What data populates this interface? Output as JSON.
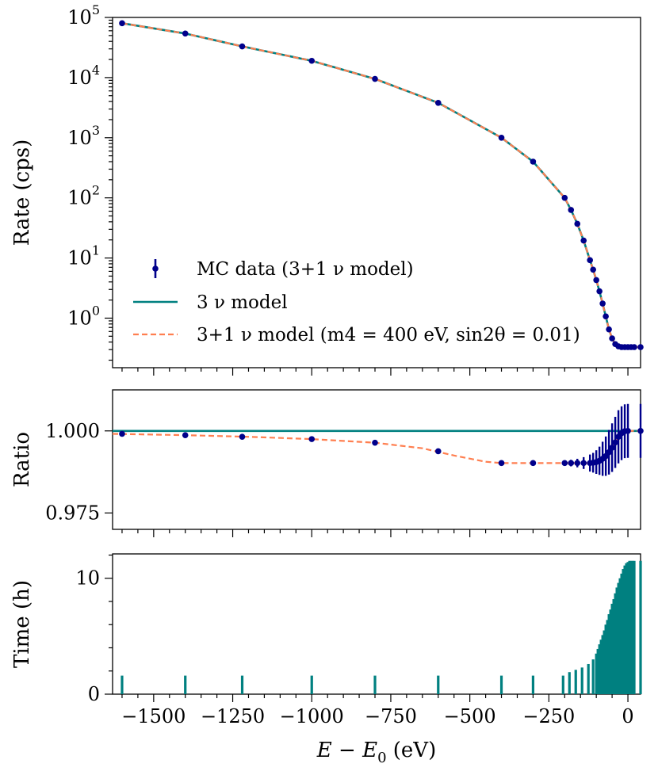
{
  "colors": {
    "data": "#00008b",
    "model3": "#008080",
    "model31": "#ff7f50",
    "bars": "#008080"
  },
  "chart_data": [
    {
      "type": "scatter",
      "panel": "rate",
      "ylabel": "Rate (cps)",
      "yscale": "log",
      "xlim": [
        -1630,
        40
      ],
      "ylim": [
        0.15,
        100000
      ],
      "ytick_exponents": [
        0,
        1,
        2,
        3,
        4,
        5
      ],
      "ytick_labels": [
        "10",
        "10",
        "10",
        "10",
        "10",
        "10"
      ],
      "legend_position": "lower-left",
      "series": [
        {
          "name": "MC data (3+1 ν model)",
          "style": "points-with-errorbars",
          "x": [
            -1600,
            -1400,
            -1220,
            -1000,
            -800,
            -600,
            -400,
            -300,
            -200,
            -180,
            -160,
            -140,
            -120,
            -110,
            -100,
            -90,
            -80,
            -70,
            -60,
            -50,
            -40,
            -30,
            -20,
            -10,
            0,
            10,
            20,
            40
          ],
          "y": [
            80000,
            54000,
            33000,
            19000,
            9500,
            3800,
            1000,
            400,
            100,
            63,
            37,
            19.5,
            9.2,
            6.4,
            4.3,
            2.8,
            1.75,
            1.07,
            0.65,
            0.46,
            0.37,
            0.34,
            0.33,
            0.33,
            0.33,
            0.33,
            0.33,
            0.33
          ]
        },
        {
          "name": "3 ν model",
          "style": "solid-line"
        },
        {
          "name": "3+1 ν model (m4 = 400 eV, sin2θ = 0.01)",
          "style": "dashed-line"
        }
      ]
    },
    {
      "type": "line",
      "panel": "ratio",
      "ylabel": "Ratio",
      "xlim": [
        -1630,
        40
      ],
      "ylim": [
        0.97,
        1.0125
      ],
      "yticks": [
        0.975,
        1.0
      ],
      "ytick_labels": [
        "0.975",
        "1.000"
      ],
      "model3_value": 1.0,
      "model31": {
        "x": [
          -1630,
          -1400,
          -1200,
          -1000,
          -800,
          -650,
          -550,
          -450,
          -400,
          -350,
          -300,
          -250,
          -130,
          -100,
          -80,
          -60,
          -40,
          -20,
          0,
          40
        ],
        "y": [
          0.9991,
          0.9987,
          0.9982,
          0.9975,
          0.9964,
          0.9947,
          0.9925,
          0.9906,
          0.9902,
          0.9902,
          0.9902,
          0.9902,
          0.9902,
          0.9905,
          0.9915,
          0.9935,
          0.9965,
          0.9993,
          1.0,
          1.0
        ]
      },
      "data": {
        "x": [
          -1600,
          -1400,
          -1220,
          -1000,
          -800,
          -600,
          -400,
          -300,
          -200,
          -180,
          -160,
          -140,
          -120,
          -110,
          -100,
          -90,
          -80,
          -70,
          -60,
          -50,
          -40,
          -30,
          -20,
          -10,
          0,
          40
        ],
        "y": [
          0.9991,
          0.9987,
          0.9982,
          0.9975,
          0.9964,
          0.9938,
          0.9902,
          0.9902,
          0.9902,
          0.9902,
          0.9902,
          0.9902,
          0.9902,
          0.9903,
          0.9905,
          0.9909,
          0.9915,
          0.9923,
          0.9935,
          0.9949,
          0.9965,
          0.9982,
          0.9993,
          0.9999,
          1.0,
          1.0
        ],
        "err": [
          0.0001,
          0.0001,
          0.0001,
          0.0001,
          0.0001,
          0.0002,
          0.0003,
          0.0004,
          0.0008,
          0.001,
          0.0013,
          0.0018,
          0.0026,
          0.003,
          0.0036,
          0.0043,
          0.0052,
          0.006,
          0.0068,
          0.0074,
          0.0078,
          0.0081,
          0.0082,
          0.0082,
          0.0082,
          0.0082
        ]
      }
    },
    {
      "type": "bar",
      "panel": "time",
      "ylabel": "Time (h)",
      "xlabel": "E − E0 (eV)",
      "xlim": [
        -1630,
        40
      ],
      "ylim": [
        0,
        12.1
      ],
      "yticks": [
        0,
        10
      ],
      "ytick_labels": [
        "0",
        "10"
      ],
      "xticks": [
        -1500,
        -1250,
        -1000,
        -750,
        -500,
        -250,
        0
      ],
      "xtick_labels": [
        "−1500",
        "−1250",
        "−1000",
        "−750",
        "−500",
        "−250",
        "0"
      ],
      "x": [
        -1600,
        -1400,
        -1220,
        -1000,
        -800,
        -600,
        -400,
        -300,
        -205,
        -185,
        -165,
        -145,
        -125,
        -110,
        -100,
        -95,
        -90,
        -85,
        -80,
        -75,
        -70,
        -65,
        -60,
        -55,
        -50,
        -45,
        -40,
        -35,
        -30,
        -25,
        -20,
        -15,
        -10,
        -5,
        0,
        5,
        10,
        15,
        20,
        40
      ],
      "values": [
        1.6,
        1.6,
        1.6,
        1.6,
        1.6,
        1.6,
        1.6,
        1.6,
        1.6,
        1.9,
        2.1,
        2.3,
        2.6,
        3.0,
        3.5,
        3.9,
        4.3,
        4.7,
        5.1,
        5.5,
        6.0,
        6.4,
        6.9,
        7.3,
        7.8,
        8.2,
        8.7,
        9.2,
        9.6,
        10.0,
        10.4,
        10.8,
        11.1,
        11.3,
        11.4,
        11.5,
        11.5,
        11.5,
        11.5,
        11.5
      ]
    }
  ]
}
